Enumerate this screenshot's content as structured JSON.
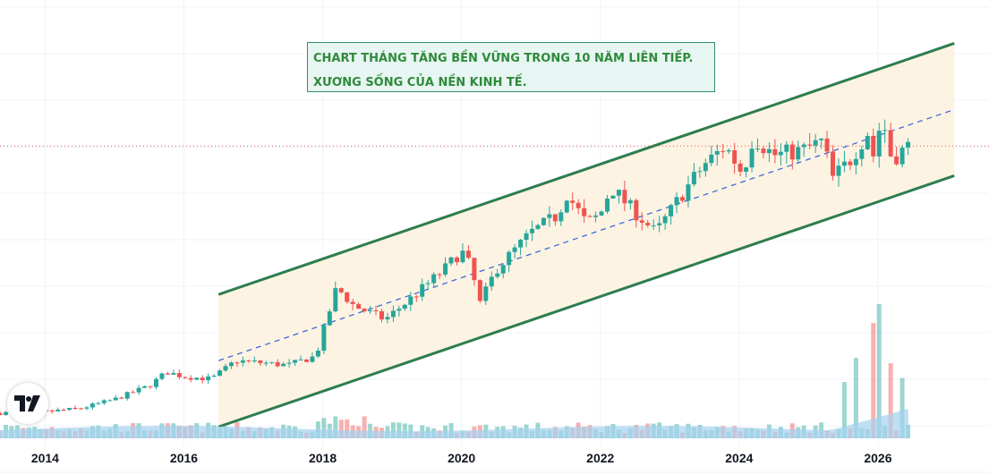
{
  "annotation": {
    "line1": "CHART THÁNG TĂNG BỀN VỮNG TRONG 10 NĂM LIÊN TIẾP.",
    "line2": "XƯƠNG SỐNG CỦA NỀN KINH TẾ."
  },
  "brand": {
    "logo_icon": "tradingview-logo-icon"
  },
  "colors": {
    "up": "#26a69a",
    "down": "#ef5350",
    "channel": "#2e7d4f",
    "channel_fill": "#fdf3e3",
    "midline": "#3f6ad8",
    "volume_ma_fill": "#a5d2ef"
  },
  "chart_data": {
    "type": "candlestick",
    "interval": "monthly",
    "x_ticks": [
      "2014",
      "2016",
      "2018",
      "2020",
      "2022",
      "2024",
      "2026"
    ],
    "x_range": [
      2013.35,
      2027.6
    ],
    "y_range": [
      8,
      105
    ],
    "y_axis_labels": "not shown",
    "grid": true,
    "current_price_line": 73,
    "channel": {
      "upper": [
        [
          2016.5,
          40.5
        ],
        [
          2027.1,
          95.5
        ]
      ],
      "lower": [
        [
          2016.5,
          11.5
        ],
        [
          2027.1,
          66.5
        ]
      ],
      "middle": [
        [
          2016.5,
          26
        ],
        [
          2027.1,
          81
        ]
      ]
    },
    "anchors": [
      [
        2013.35,
        14.5
      ],
      [
        2014.0,
        14.8
      ],
      [
        2014.5,
        15.5
      ],
      [
        2015.0,
        17.5
      ],
      [
        2015.5,
        20.5
      ],
      [
        2015.75,
        23.5
      ],
      [
        2016.0,
        22.5
      ],
      [
        2016.4,
        22.0
      ],
      [
        2016.75,
        26.0
      ],
      [
        2017.5,
        25.0
      ],
      [
        2017.9,
        27.0
      ],
      [
        2018.2,
        42.0
      ],
      [
        2018.45,
        38.0
      ],
      [
        2018.9,
        35.0
      ],
      [
        2019.3,
        40.0
      ],
      [
        2019.75,
        46.0
      ],
      [
        2020.0,
        50.0
      ],
      [
        2020.15,
        46.0
      ],
      [
        2020.25,
        38.0
      ],
      [
        2020.5,
        46.0
      ],
      [
        2021.0,
        54.0
      ],
      [
        2021.4,
        58.0
      ],
      [
        2021.5,
        63.0
      ],
      [
        2021.8,
        56.0
      ],
      [
        2022.0,
        58.0
      ],
      [
        2022.15,
        64.0
      ],
      [
        2022.4,
        60.0
      ],
      [
        2022.8,
        54.0
      ],
      [
        2023.2,
        63.0
      ],
      [
        2023.5,
        69.0
      ],
      [
        2023.8,
        73.0
      ],
      [
        2024.05,
        67.0
      ],
      [
        2024.2,
        75.0
      ],
      [
        2024.5,
        71.0
      ],
      [
        2024.9,
        72.0
      ],
      [
        2025.2,
        74.0
      ],
      [
        2025.35,
        66.0
      ],
      [
        2025.6,
        70.0
      ],
      [
        2025.85,
        76.0
      ],
      [
        2025.95,
        70.0
      ],
      [
        2026.05,
        80.0
      ],
      [
        2026.2,
        70.0
      ],
      [
        2026.35,
        72.0
      ],
      [
        2026.45,
        73.0
      ]
    ],
    "volume": {
      "unit": "relative",
      "high_volume_months": [
        {
          "x": 2025.55,
          "v": 0.42
        },
        {
          "x": 2025.68,
          "v": 0.6
        },
        {
          "x": 2025.95,
          "v": 0.86
        },
        {
          "x": 2026.05,
          "v": 1.0
        },
        {
          "x": 2026.2,
          "v": 0.56
        },
        {
          "x": 2026.35,
          "v": 0.45
        }
      ]
    }
  }
}
